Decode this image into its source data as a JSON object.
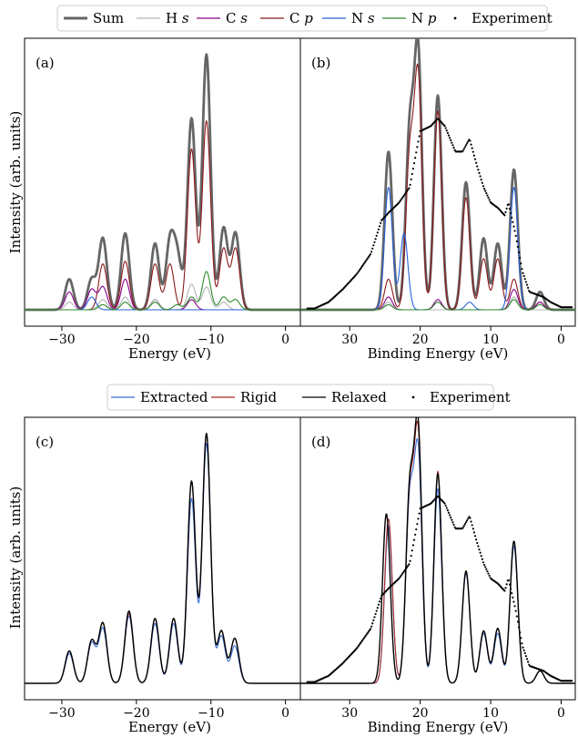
{
  "figure": {
    "ylabel_top": "Intensity (arb. units)",
    "ylabel_bottom": "Intensity (arb. units)"
  },
  "legend_top": {
    "entries": [
      {
        "label": "Sum",
        "italic": "",
        "color": "#666666",
        "style": "thick"
      },
      {
        "label": "H ",
        "italic": "s",
        "color": "#b4b4b4",
        "style": "line"
      },
      {
        "label": "C ",
        "italic": "s",
        "color": "#8b008b",
        "style": "line"
      },
      {
        "label": "C ",
        "italic": "p",
        "color": "#8b1a1a",
        "style": "line"
      },
      {
        "label": "N ",
        "italic": "s",
        "color": "#2962d9",
        "style": "line"
      },
      {
        "label": "N ",
        "italic": "p",
        "color": "#2e8b2e",
        "style": "line"
      },
      {
        "label": "Experiment",
        "italic": "",
        "color": "#000000",
        "style": "dot"
      }
    ]
  },
  "legend_bottom": {
    "entries": [
      {
        "label": "Extracted",
        "color": "#3b6fd6",
        "style": "line"
      },
      {
        "label": "Rigid",
        "color": "#a52a2a",
        "style": "line"
      },
      {
        "label": "Relaxed",
        "color": "#000000",
        "style": "line"
      },
      {
        "label": "Experiment",
        "color": "#000000",
        "style": "dot"
      }
    ]
  },
  "chart_data": [
    {
      "panel": "(a)",
      "type": "line",
      "xlabel": "Energy (eV)",
      "xlim": [
        -35,
        2
      ],
      "ylim": [
        0,
        100
      ],
      "xticks": [
        -30,
        -20,
        -10,
        0
      ],
      "xtick_labels": [
        "−30",
        "−20",
        "−10",
        "0"
      ],
      "peaks": {
        "Sum": [
          [
            -29,
            12
          ],
          [
            -26,
            12
          ],
          [
            -24.5,
            28
          ],
          [
            -21.5,
            30
          ],
          [
            -17.5,
            26
          ],
          [
            -15.5,
            26
          ],
          [
            -14.5,
            20
          ],
          [
            -12.6,
            75
          ],
          [
            -10.6,
            100
          ],
          [
            -8.3,
            32
          ],
          [
            -6.7,
            30
          ]
        ],
        "C p": [
          [
            -24.5,
            18
          ],
          [
            -21.5,
            19
          ],
          [
            -17.5,
            18
          ],
          [
            -15.5,
            18
          ],
          [
            -12.6,
            63
          ],
          [
            -10.6,
            74
          ],
          [
            -8.3,
            24
          ],
          [
            -6.7,
            24
          ]
        ],
        "C s": [
          [
            -29,
            7
          ],
          [
            -26,
            8
          ],
          [
            -24.5,
            9
          ],
          [
            -21.5,
            12
          ],
          [
            -17.5,
            4
          ],
          [
            -12.6,
            4
          ]
        ],
        "H s": [
          [
            -29,
            3
          ],
          [
            -24.5,
            4
          ],
          [
            -21.5,
            5
          ],
          [
            -17.5,
            4
          ],
          [
            -12.6,
            10
          ],
          [
            -10.6,
            9
          ],
          [
            -8.3,
            3
          ]
        ],
        "N s": [
          [
            -26,
            5
          ]
        ],
        "N p": [
          [
            -24.5,
            2
          ],
          [
            -21.5,
            3
          ],
          [
            -17.5,
            3
          ],
          [
            -14.5,
            2
          ],
          [
            -12.6,
            5
          ],
          [
            -10.6,
            15
          ],
          [
            -8.3,
            5
          ],
          [
            -6.7,
            4
          ]
        ]
      }
    },
    {
      "panel": "(b)",
      "type": "line",
      "xlabel": "Binding Energy (eV)",
      "xlim": [
        37,
        -2
      ],
      "ylim": [
        0,
        100
      ],
      "xticks": [
        30,
        20,
        10,
        0
      ],
      "xtick_labels": [
        "30",
        "20",
        "10",
        "0"
      ],
      "peaks": {
        "Sum": [
          [
            24.5,
            62
          ],
          [
            21.5,
            68
          ],
          [
            20.3,
            100
          ],
          [
            17.5,
            84
          ],
          [
            13.5,
            50
          ],
          [
            11,
            28
          ],
          [
            9,
            26
          ],
          [
            6.7,
            55
          ],
          [
            3,
            7
          ]
        ],
        "C p": [
          [
            24.5,
            12
          ],
          [
            21.5,
            58
          ],
          [
            20.3,
            90
          ],
          [
            17.5,
            78
          ],
          [
            13.5,
            44
          ],
          [
            11,
            20
          ],
          [
            9,
            20
          ],
          [
            6.7,
            12
          ],
          [
            3,
            3
          ]
        ],
        "N s": [
          [
            24.5,
            48
          ],
          [
            22.3,
            30
          ],
          [
            13,
            3
          ],
          [
            6.7,
            48
          ]
        ],
        "C s": [
          [
            24.5,
            5
          ],
          [
            17.5,
            4
          ],
          [
            6.7,
            8
          ],
          [
            3,
            3
          ]
        ],
        "H s": [
          [
            24.5,
            3
          ],
          [
            6.7,
            5
          ]
        ],
        "N p": [
          [
            24.5,
            2
          ],
          [
            17.5,
            3
          ],
          [
            6.7,
            4
          ],
          [
            3,
            2
          ]
        ]
      },
      "experiment": [
        [
          35,
          0.5
        ],
        [
          33,
          3
        ],
        [
          31,
          8
        ],
        [
          29,
          14
        ],
        [
          27,
          22
        ],
        [
          25.5,
          35
        ],
        [
          24.5,
          38
        ],
        [
          23,
          42
        ],
        [
          21.5,
          48
        ],
        [
          20,
          70
        ],
        [
          18.5,
          72
        ],
        [
          17.5,
          75
        ],
        [
          16.5,
          72
        ],
        [
          15,
          62
        ],
        [
          14,
          62
        ],
        [
          13,
          67
        ],
        [
          12,
          57
        ],
        [
          11,
          48
        ],
        [
          10,
          42
        ],
        [
          9,
          40
        ],
        [
          8,
          37
        ],
        [
          7.5,
          42
        ],
        [
          6.5,
          30
        ],
        [
          5.5,
          15
        ],
        [
          4.5,
          7
        ],
        [
          3.5,
          6
        ],
        [
          2.5,
          5
        ],
        [
          1.5,
          3
        ],
        [
          0,
          1
        ],
        [
          -1.5,
          1
        ]
      ]
    },
    {
      "panel": "(c)",
      "type": "line",
      "xlabel": "Energy (eV)",
      "xlim": [
        -35,
        2
      ],
      "ylim": [
        0,
        100
      ],
      "xticks": [
        -30,
        -20,
        -10,
        0
      ],
      "xtick_labels": [
        "−30",
        "−20",
        "−10",
        "0"
      ],
      "peaks": {
        "Extracted": [
          [
            -29,
            12
          ],
          [
            -26,
            16
          ],
          [
            -24.5,
            22
          ],
          [
            -21,
            27
          ],
          [
            -17.5,
            24
          ],
          [
            -15,
            24
          ],
          [
            -12.6,
            74
          ],
          [
            -10.6,
            96
          ],
          [
            -8.6,
            19
          ],
          [
            -6.8,
            15
          ]
        ],
        "Rigid": [
          [
            -29,
            13
          ],
          [
            -26,
            17
          ],
          [
            -24.5,
            24
          ],
          [
            -21,
            28
          ],
          [
            -17.5,
            26
          ],
          [
            -15,
            26
          ],
          [
            -12.6,
            81
          ],
          [
            -10.6,
            100
          ],
          [
            -8.6,
            21
          ],
          [
            -6.8,
            18
          ]
        ],
        "Relaxed": [
          [
            -29,
            13
          ],
          [
            -26,
            17
          ],
          [
            -24.5,
            24
          ],
          [
            -21,
            29
          ],
          [
            -17.5,
            26
          ],
          [
            -15,
            26
          ],
          [
            -12.6,
            81
          ],
          [
            -10.6,
            100
          ],
          [
            -8.6,
            21
          ],
          [
            -6.8,
            18
          ]
        ]
      }
    },
    {
      "panel": "(d)",
      "type": "line",
      "xlabel": "Binding Energy (eV)",
      "xlim": [
        37,
        -2
      ],
      "ylim": [
        0,
        100
      ],
      "xticks": [
        30,
        20,
        10,
        0
      ],
      "xtick_labels": [
        "30",
        "20",
        "10",
        "0"
      ],
      "peaks": {
        "Extracted": [
          [
            24.5,
            63
          ],
          [
            21.5,
            70
          ],
          [
            20.3,
            90
          ],
          [
            17.5,
            78
          ],
          [
            13.5,
            44
          ],
          [
            11,
            20
          ],
          [
            9,
            20
          ],
          [
            6.7,
            55
          ],
          [
            3,
            5
          ]
        ],
        "Rigid": [
          [
            24.5,
            66
          ],
          [
            21.5,
            72
          ],
          [
            20.3,
            97
          ],
          [
            17.5,
            85
          ],
          [
            13.5,
            45
          ],
          [
            11,
            21
          ],
          [
            9,
            22
          ],
          [
            6.7,
            57
          ],
          [
            3,
            5
          ]
        ],
        "Relaxed": [
          [
            24.8,
            68
          ],
          [
            21.5,
            74
          ],
          [
            20.3,
            100
          ],
          [
            17.5,
            84
          ],
          [
            13.5,
            45
          ],
          [
            11,
            21
          ],
          [
            9,
            22
          ],
          [
            6.7,
            57
          ],
          [
            3,
            5
          ]
        ]
      },
      "experiment": [
        [
          35,
          0.5
        ],
        [
          33,
          3
        ],
        [
          31,
          8
        ],
        [
          29,
          14
        ],
        [
          27,
          22
        ],
        [
          25.5,
          35
        ],
        [
          24.5,
          38
        ],
        [
          23,
          42
        ],
        [
          21.5,
          48
        ],
        [
          20,
          70
        ],
        [
          18.5,
          72
        ],
        [
          17.5,
          75
        ],
        [
          16.5,
          72
        ],
        [
          15,
          62
        ],
        [
          14,
          62
        ],
        [
          13,
          67
        ],
        [
          12,
          57
        ],
        [
          11,
          48
        ],
        [
          10,
          42
        ],
        [
          9,
          40
        ],
        [
          8,
          37
        ],
        [
          7.5,
          42
        ],
        [
          6.5,
          30
        ],
        [
          5.5,
          15
        ],
        [
          4.5,
          7
        ],
        [
          3.5,
          6
        ],
        [
          2.5,
          5
        ],
        [
          1.5,
          3
        ],
        [
          0,
          1
        ],
        [
          -1.5,
          1
        ]
      ]
    }
  ]
}
